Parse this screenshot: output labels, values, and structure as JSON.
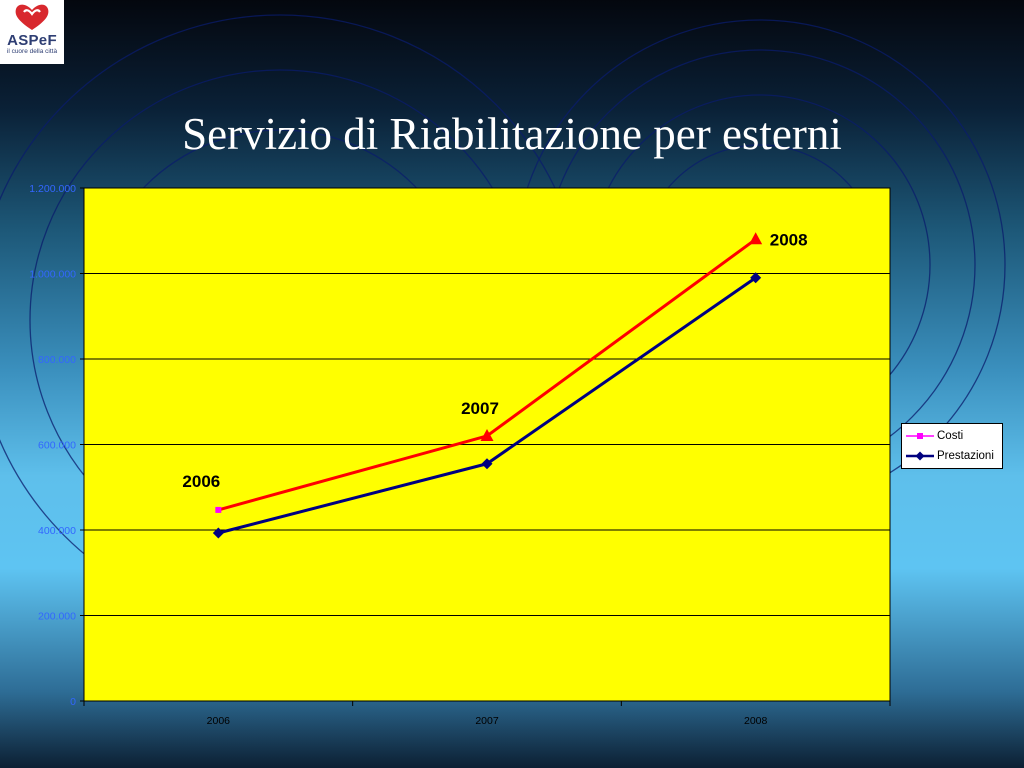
{
  "logo": {
    "name": "ASPeF",
    "tagline": "il cuore della città"
  },
  "slide": {
    "title": "Servizio di Riabilitazione per esterni"
  },
  "colors": {
    "plot_background": "#ffff00",
    "costi": "#ff0000",
    "costi_marker_2006": "#ff00ff",
    "prestazioni": "#000080",
    "axis_text": "#3366ff"
  },
  "chart_data": {
    "type": "line",
    "categories": [
      "2006",
      "2007",
      "2008"
    ],
    "series": [
      {
        "name": "Costi",
        "values": [
          447000,
          620000,
          1080000
        ]
      },
      {
        "name": "Prestazioni",
        "values": [
          393000,
          555000,
          990000
        ]
      }
    ],
    "ylim": [
      0,
      1200000
    ],
    "ytick_labels": [
      "0",
      "200.000",
      "400.000",
      "600.000",
      "800.000",
      "1.000.000",
      "1.200.000"
    ],
    "grid": true,
    "legend": "right",
    "annotations": [
      "2006",
      "2007",
      "2008"
    ]
  }
}
